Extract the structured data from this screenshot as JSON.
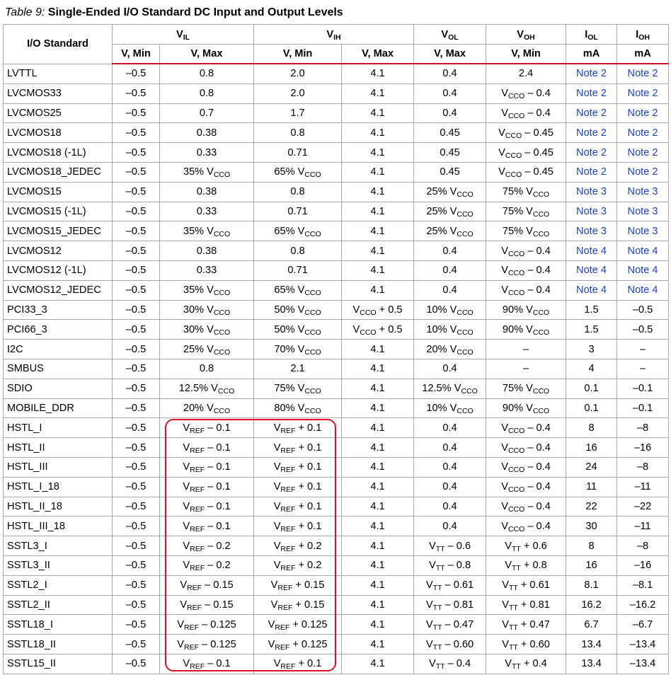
{
  "caption": {
    "label": "Table  9:",
    "title": "Single-Ended I/O Standard DC Input and Output Levels"
  },
  "header": {
    "io_standard": "I/O Standard",
    "vil": {
      "main": "V",
      "sub": "IL"
    },
    "vih": {
      "main": "V",
      "sub": "IH"
    },
    "vol": {
      "main": "V",
      "sub": "OL"
    },
    "voh": {
      "main": "V",
      "sub": "OH"
    },
    "iol": {
      "main": "I",
      "sub": "OL"
    },
    "ioh": {
      "main": "I",
      "sub": "OH"
    },
    "sub_headers": [
      "V, Min",
      "V, Max",
      "V, Min",
      "V, Max",
      "V, Max",
      "V, Min",
      "mA",
      "mA"
    ]
  },
  "highlight_color": "#e0102a",
  "note_color": "#1a3fd6",
  "rows": [
    [
      "LVTTL",
      "–0.5",
      "0.8",
      "2.0",
      "4.1",
      "0.4",
      "2.4",
      "Note 2",
      "Note 2"
    ],
    [
      "LVCMOS33",
      "–0.5",
      "0.8",
      "2.0",
      "4.1",
      "0.4",
      "V_{CCO} – 0.4",
      "Note 2",
      "Note 2"
    ],
    [
      "LVCMOS25",
      "–0.5",
      "0.7",
      "1.7",
      "4.1",
      "0.4",
      "V_{CCO} – 0.4",
      "Note 2",
      "Note 2"
    ],
    [
      "LVCMOS18",
      "–0.5",
      "0.38",
      "0.8",
      "4.1",
      "0.45",
      "V_{CCO} – 0.45",
      "Note 2",
      "Note 2"
    ],
    [
      "LVCMOS18 (-1L)",
      "–0.5",
      "0.33",
      "0.71",
      "4.1",
      "0.45",
      "V_{CCO} – 0.45",
      "Note 2",
      "Note 2"
    ],
    [
      "LVCMOS18_JEDEC",
      "–0.5",
      "35% V_{CCO}",
      "65% V_{CCO}",
      "4.1",
      "0.45",
      "V_{CCO} – 0.45",
      "Note 2",
      "Note 2"
    ],
    [
      "LVCMOS15",
      "–0.5",
      "0.38",
      "0.8",
      "4.1",
      "25% V_{CCO}",
      "75% V_{CCO}",
      "Note 3",
      "Note 3"
    ],
    [
      "LVCMOS15 (-1L)",
      "–0.5",
      "0.33",
      "0.71",
      "4.1",
      "25% V_{CCO}",
      "75% V_{CCO}",
      "Note 3",
      "Note 3"
    ],
    [
      "LVCMOS15_JEDEC",
      "–0.5",
      "35% V_{CCO}",
      "65% V_{CCO}",
      "4.1",
      "25% V_{CCO}",
      "75% V_{CCO}",
      "Note 3",
      "Note 3"
    ],
    [
      "LVCMOS12",
      "–0.5",
      "0.38",
      "0.8",
      "4.1",
      "0.4",
      "V_{CCO} – 0.4",
      "Note 4",
      "Note 4"
    ],
    [
      "LVCMOS12 (-1L)",
      "–0.5",
      "0.33",
      "0.71",
      "4.1",
      "0.4",
      "V_{CCO} – 0.4",
      "Note 4",
      "Note 4"
    ],
    [
      "LVCMOS12_JEDEC",
      "–0.5",
      "35% V_{CCO}",
      "65% V_{CCO}",
      "4.1",
      "0.4",
      "V_{CCO} – 0.4",
      "Note 4",
      "Note 4"
    ],
    [
      "PCI33_3",
      "–0.5",
      "30% V_{CCO}",
      "50% V_{CCO}",
      "V_{CCO} + 0.5",
      "10% V_{CCO}",
      "90% V_{CCO}",
      "1.5",
      "–0.5"
    ],
    [
      "PCI66_3",
      "–0.5",
      "30% V_{CCO}",
      "50% V_{CCO}",
      "V_{CCO} + 0.5",
      "10% V_{CCO}",
      "90% V_{CCO}",
      "1.5",
      "–0.5"
    ],
    [
      "I2C",
      "–0.5",
      "25% V_{CCO}",
      "70% V_{CCO}",
      "4.1",
      "20% V_{CCO}",
      "–",
      "3",
      "–"
    ],
    [
      "SMBUS",
      "–0.5",
      "0.8",
      "2.1",
      "4.1",
      "0.4",
      "–",
      "4",
      "–"
    ],
    [
      "SDIO",
      "–0.5",
      "12.5% V_{CCO}",
      "75% V_{CCO}",
      "4.1",
      "12.5% V_{CCO}",
      "75% V_{CCO}",
      "0.1",
      "–0.1"
    ],
    [
      "MOBILE_DDR",
      "–0.5",
      "20% V_{CCO}",
      "80% V_{CCO}",
      "4.1",
      "10% V_{CCO}",
      "90% V_{CCO}",
      "0.1",
      "–0.1"
    ],
    [
      "HSTL_I",
      "–0.5",
      "V_{REF} – 0.1",
      "V_{REF} + 0.1",
      "4.1",
      "0.4",
      "V_{CCO} – 0.4",
      "8",
      "–8"
    ],
    [
      "HSTL_II",
      "–0.5",
      "V_{REF} – 0.1",
      "V_{REF} + 0.1",
      "4.1",
      "0.4",
      "V_{CCO} – 0.4",
      "16",
      "–16"
    ],
    [
      "HSTL_III",
      "–0.5",
      "V_{REF} – 0.1",
      "V_{REF} + 0.1",
      "4.1",
      "0.4",
      "V_{CCO} – 0.4",
      "24",
      "–8"
    ],
    [
      "HSTL_I_18",
      "–0.5",
      "V_{REF} – 0.1",
      "V_{REF} + 0.1",
      "4.1",
      "0.4",
      "V_{CCO} – 0.4",
      "11",
      "–11"
    ],
    [
      "HSTL_II_18",
      "–0.5",
      "V_{REF} – 0.1",
      "V_{REF} + 0.1",
      "4.1",
      "0.4",
      "V_{CCO} – 0.4",
      "22",
      "–22"
    ],
    [
      "HSTL_III_18",
      "–0.5",
      "V_{REF} – 0.1",
      "V_{REF} + 0.1",
      "4.1",
      "0.4",
      "V_{CCO} – 0.4",
      "30",
      "–11"
    ],
    [
      "SSTL3_I",
      "–0.5",
      "V_{REF} – 0.2",
      "V_{REF} + 0.2",
      "4.1",
      "V_{TT} – 0.6",
      "V_{TT} + 0.6",
      "8",
      "–8"
    ],
    [
      "SSTL3_II",
      "–0.5",
      "V_{REF} – 0.2",
      "V_{REF} + 0.2",
      "4.1",
      "V_{TT} – 0.8",
      "V_{TT} + 0.8",
      "16",
      "–16"
    ],
    [
      "SSTL2_I",
      "–0.5",
      "V_{REF} – 0.15",
      "V_{REF} + 0.15",
      "4.1",
      "V_{TT} – 0.61",
      "V_{TT} + 0.61",
      "8.1",
      "–8.1"
    ],
    [
      "SSTL2_II",
      "–0.5",
      "V_{REF} – 0.15",
      "V_{REF} + 0.15",
      "4.1",
      "V_{TT} – 0.81",
      "V_{TT} + 0.81",
      "16.2",
      "–16.2"
    ],
    [
      "SSTL18_I",
      "–0.5",
      "V_{REF} – 0.125",
      "V_{REF} + 0.125",
      "4.1",
      "V_{TT} – 0.47",
      "V_{TT} + 0.47",
      "6.7",
      "–6.7"
    ],
    [
      "SSTL18_II",
      "–0.5",
      "V_{REF} – 0.125",
      "V_{REF} + 0.125",
      "4.1",
      "V_{TT} – 0.60",
      "V_{TT} + 0.60",
      "13.4",
      "–13.4"
    ],
    [
      "SSTL15_II",
      "–0.5",
      "V_{REF} – 0.1",
      "V_{REF} + 0.1",
      "4.1",
      "V_{TT} – 0.4",
      "V_{TT} + 0.4",
      "13.4",
      "–13.4"
    ]
  ]
}
